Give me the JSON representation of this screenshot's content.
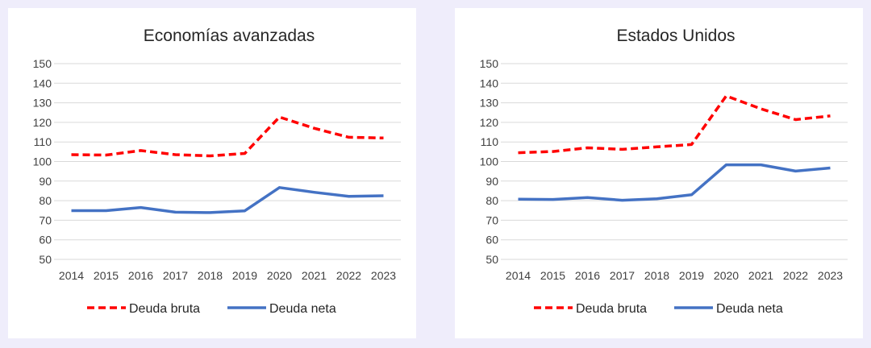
{
  "colors": {
    "gross": "#ff0000",
    "net": "#4472c4",
    "background": "#efedfb"
  },
  "chart_data": [
    {
      "type": "line",
      "title": "Economías avanzadas",
      "categories": [
        "2014",
        "2015",
        "2016",
        "2017",
        "2018",
        "2019",
        "2020",
        "2021",
        "2022",
        "2023"
      ],
      "ylim": [
        50,
        150
      ],
      "yticks": [
        "50",
        "60",
        "70",
        "80",
        "90",
        "100",
        "110",
        "120",
        "130",
        "140",
        "150"
      ],
      "grid": true,
      "legend_position": "bottom",
      "series": [
        {
          "name": "Deuda bruta",
          "style": "dashed",
          "values": [
            103.5,
            103.3,
            105.6,
            103.5,
            102.9,
            104.1,
            122.7,
            117.0,
            112.4,
            112.0
          ]
        },
        {
          "name": "Deuda neta",
          "style": "solid",
          "values": [
            74.9,
            74.9,
            76.5,
            74.1,
            73.9,
            74.8,
            86.7,
            84.3,
            82.2,
            82.5
          ]
        }
      ]
    },
    {
      "type": "line",
      "title": "Estados Unidos",
      "categories": [
        "2014",
        "2015",
        "2016",
        "2017",
        "2018",
        "2019",
        "2020",
        "2021",
        "2022",
        "2023"
      ],
      "ylim": [
        50,
        150
      ],
      "yticks": [
        "50",
        "60",
        "70",
        "80",
        "90",
        "100",
        "110",
        "120",
        "130",
        "140",
        "150"
      ],
      "grid": true,
      "legend_position": "bottom",
      "series": [
        {
          "name": "Deuda bruta",
          "style": "dashed",
          "values": [
            104.5,
            105.1,
            107.0,
            106.2,
            107.5,
            108.7,
            133.5,
            126.9,
            121.4,
            123.3
          ]
        },
        {
          "name": "Deuda neta",
          "style": "solid",
          "values": [
            80.8,
            80.6,
            81.6,
            80.2,
            81.0,
            83.0,
            98.3,
            98.3,
            95.1,
            96.7
          ]
        }
      ]
    }
  ]
}
